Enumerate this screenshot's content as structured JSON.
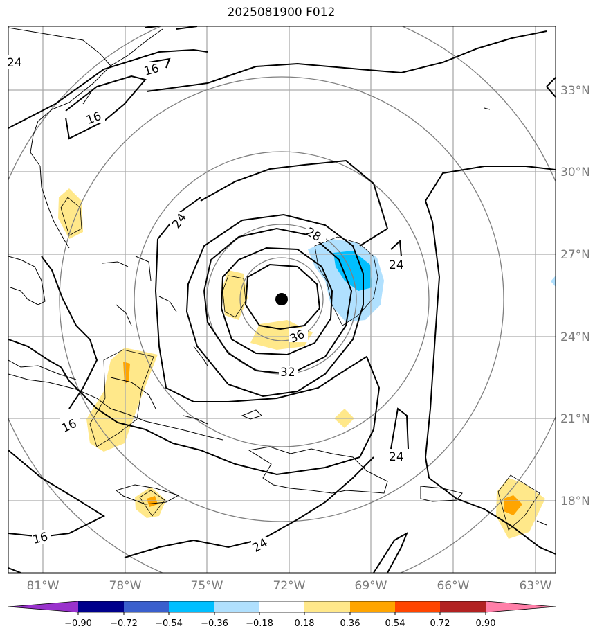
{
  "title": "2025081900 F012",
  "latitude_labels": [
    "33°N",
    "30°N",
    "27°N",
    "24°N",
    "21°N",
    "18°N"
  ],
  "longitude_labels": [
    "81°W",
    "78°W",
    "75°W",
    "72°W",
    "69°W",
    "66°W",
    "63°W"
  ],
  "contour_labels": [
    "24",
    "16",
    "16",
    "24",
    "28",
    "24",
    "36",
    "32",
    "16",
    "24",
    "16",
    "24"
  ],
  "colorbar": {
    "tick_labels": [
      "−0.90",
      "−0.72",
      "−0.54",
      "−0.36",
      "−0.18",
      "0.18",
      "0.36",
      "0.54",
      "0.72",
      "0.90"
    ],
    "colors": [
      "#9932cc",
      "#00008b",
      "#3a5fcd",
      "#00bfff",
      "#b0e0fe",
      "#ffffff",
      "#ffe88a",
      "#ffa500",
      "#ff4500",
      "#b22222",
      "#ff7fa8"
    ]
  },
  "colors": {
    "land_outline": "#000000",
    "gridline": "#aaaaaa",
    "range_ring": "#808080",
    "contour": "#000000",
    "storm_center": "#000000"
  }
}
